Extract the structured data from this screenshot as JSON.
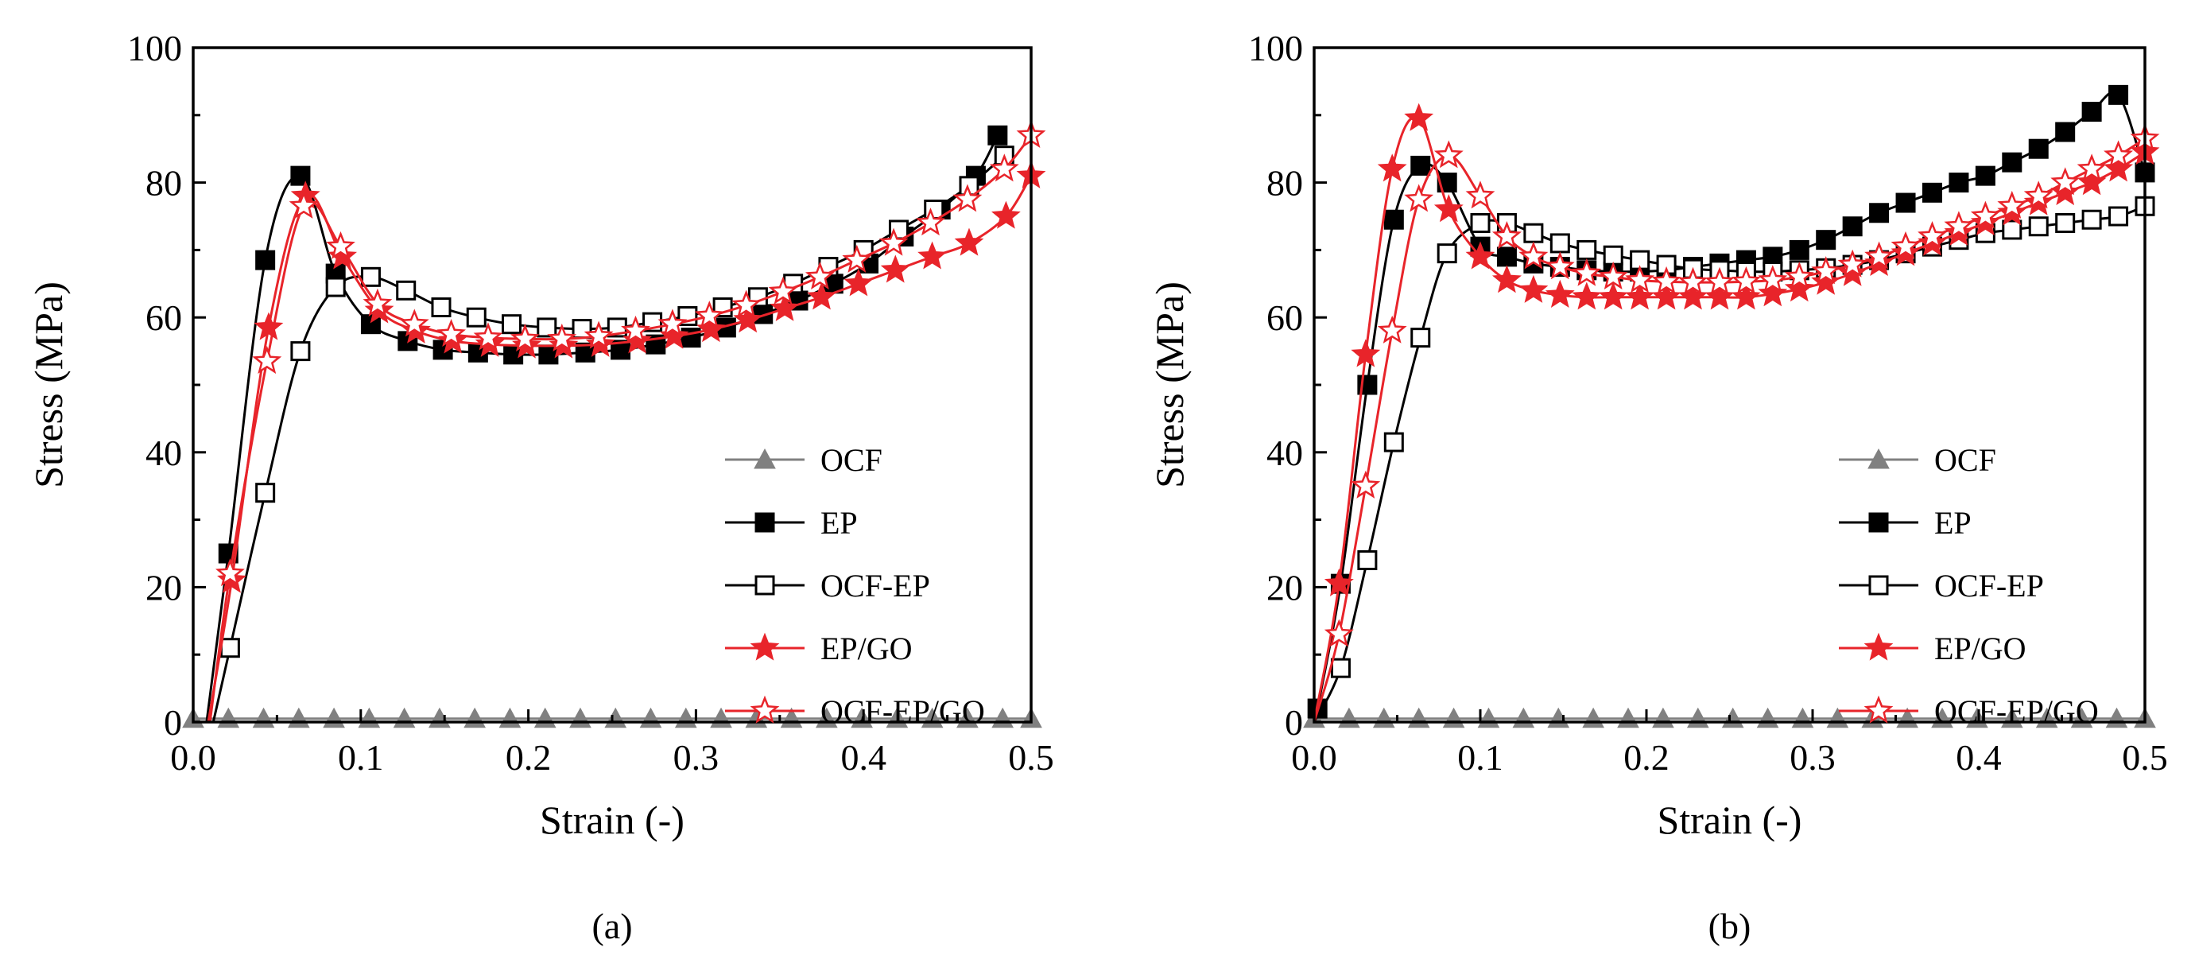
{
  "chart_data": [
    {
      "type": "line",
      "panel_label": "(a)",
      "xlabel": "Strain (-)",
      "ylabel": "Stress (MPa)",
      "xlim": [
        0.0,
        0.5
      ],
      "ylim": [
        0,
        100
      ],
      "xticks": [
        "0.0",
        "0.1",
        "0.2",
        "0.3",
        "0.4",
        "0.5"
      ],
      "yticks": [
        "0",
        "20",
        "40",
        "60",
        "80",
        "100"
      ],
      "grid": false,
      "legend": "bottom-right",
      "series": [
        {
          "name": "OCF",
          "color": "#808080",
          "marker": "triangle-filled",
          "x": [
            0.0,
            0.021,
            0.042,
            0.063,
            0.084,
            0.105,
            0.126,
            0.147,
            0.168,
            0.189,
            0.21,
            0.231,
            0.252,
            0.273,
            0.294,
            0.315,
            0.336,
            0.357,
            0.378,
            0.399,
            0.42,
            0.441,
            0.462,
            0.483,
            0.5
          ],
          "y": [
            0.5,
            0.5,
            0.5,
            0.5,
            0.5,
            0.5,
            0.5,
            0.5,
            0.5,
            0.5,
            0.5,
            0.5,
            0.5,
            0.5,
            0.5,
            0.5,
            0.5,
            0.5,
            0.5,
            0.5,
            0.5,
            0.5,
            0.5,
            0.5,
            0.5
          ]
        },
        {
          "name": "EP",
          "color": "#000000",
          "marker": "square-filled",
          "x": [
            0.008,
            0.021,
            0.043,
            0.064,
            0.085,
            0.106,
            0.128,
            0.149,
            0.17,
            0.191,
            0.212,
            0.234,
            0.255,
            0.276,
            0.297,
            0.318,
            0.34,
            0.361,
            0.382,
            0.403,
            0.424,
            0.446,
            0.467,
            0.48
          ],
          "y": [
            0,
            25,
            68.5,
            81,
            66.5,
            59,
            56.5,
            55.2,
            54.8,
            54.5,
            54.5,
            54.8,
            55.2,
            56,
            57,
            58.5,
            60.5,
            62.5,
            65,
            68,
            72,
            76,
            81,
            87
          ]
        },
        {
          "name": "OCF-EP",
          "color": "#000000",
          "marker": "square-open",
          "x": [
            0.012,
            0.022,
            0.043,
            0.064,
            0.085,
            0.106,
            0.127,
            0.148,
            0.169,
            0.19,
            0.211,
            0.232,
            0.253,
            0.274,
            0.295,
            0.316,
            0.337,
            0.358,
            0.379,
            0.4,
            0.421,
            0.442,
            0.463,
            0.484
          ],
          "y": [
            0,
            11,
            34,
            55,
            64.5,
            66,
            64,
            61.5,
            60,
            59,
            58.5,
            58.3,
            58.5,
            59.3,
            60.2,
            61.5,
            63,
            65,
            67.5,
            70,
            73,
            76,
            79.5,
            84
          ]
        },
        {
          "name": "EP/GO",
          "color": "#e8242a",
          "marker": "star-filled",
          "x": [
            0.009,
            0.023,
            0.045,
            0.067,
            0.089,
            0.111,
            0.133,
            0.155,
            0.177,
            0.199,
            0.221,
            0.243,
            0.265,
            0.287,
            0.309,
            0.331,
            0.353,
            0.375,
            0.397,
            0.419,
            0.441,
            0.463,
            0.485,
            0.5
          ],
          "y": [
            0,
            21,
            58.5,
            78,
            69,
            61,
            58,
            56.5,
            56,
            55.8,
            55.8,
            56,
            56.5,
            57.2,
            58.2,
            59.6,
            61.3,
            63,
            65,
            67,
            69,
            71,
            75,
            81
          ]
        },
        {
          "name": "OCF-EP/GO",
          "color": "#e8242a",
          "marker": "star-open",
          "x": [
            0.01,
            0.022,
            0.044,
            0.066,
            0.088,
            0.11,
            0.132,
            0.154,
            0.176,
            0.198,
            0.22,
            0.242,
            0.264,
            0.286,
            0.308,
            0.33,
            0.352,
            0.374,
            0.396,
            0.418,
            0.44,
            0.462,
            0.484,
            0.5
          ],
          "y": [
            0,
            22,
            53.5,
            76.5,
            70.5,
            62,
            59,
            57.5,
            57,
            56.8,
            56.8,
            57.2,
            58,
            59,
            60.2,
            61.8,
            63.8,
            66,
            68.5,
            71,
            74,
            77.5,
            82,
            87
          ]
        }
      ]
    },
    {
      "type": "line",
      "panel_label": "(b)",
      "xlabel": "Strain (-)",
      "ylabel": "Stress (MPa)",
      "xlim": [
        0.0,
        0.5
      ],
      "ylim": [
        0,
        100
      ],
      "xticks": [
        "0.0",
        "0.1",
        "0.2",
        "0.3",
        "0.4",
        "0.5"
      ],
      "yticks": [
        "0",
        "20",
        "40",
        "60",
        "80",
        "100"
      ],
      "grid": false,
      "legend": "bottom-right",
      "series": [
        {
          "name": "OCF",
          "color": "#808080",
          "marker": "triangle-filled",
          "x": [
            0.0,
            0.021,
            0.042,
            0.063,
            0.084,
            0.105,
            0.126,
            0.147,
            0.168,
            0.189,
            0.21,
            0.231,
            0.252,
            0.273,
            0.294,
            0.315,
            0.336,
            0.357,
            0.378,
            0.399,
            0.42,
            0.441,
            0.462,
            0.483,
            0.5
          ],
          "y": [
            0.5,
            0.5,
            0.5,
            0.5,
            0.5,
            0.5,
            0.5,
            0.5,
            0.5,
            0.5,
            0.5,
            0.5,
            0.5,
            0.5,
            0.5,
            0.5,
            0.5,
            0.5,
            0.5,
            0.5,
            0.5,
            0.5,
            0.5,
            0.5,
            0.5
          ]
        },
        {
          "name": "EP",
          "color": "#000000",
          "marker": "square-filled",
          "x": [
            0.002,
            0.016,
            0.032,
            0.048,
            0.064,
            0.08,
            0.1,
            0.116,
            0.132,
            0.148,
            0.164,
            0.18,
            0.196,
            0.212,
            0.228,
            0.244,
            0.26,
            0.276,
            0.292,
            0.308,
            0.324,
            0.34,
            0.356,
            0.372,
            0.388,
            0.404,
            0.42,
            0.436,
            0.452,
            0.468,
            0.484,
            0.5
          ],
          "y": [
            2,
            20.5,
            50,
            74.5,
            82.5,
            80,
            70.5,
            69,
            68,
            67.5,
            67,
            66.8,
            66.8,
            67,
            67.5,
            68,
            68.5,
            69,
            70,
            71.5,
            73.5,
            75.5,
            77,
            78.5,
            80,
            81,
            83,
            85,
            87.5,
            90.5,
            93,
            81.5
          ]
        },
        {
          "name": "OCF-EP",
          "color": "#000000",
          "marker": "square-open",
          "x": [
            0.0,
            0.016,
            0.032,
            0.048,
            0.064,
            0.08,
            0.1,
            0.116,
            0.132,
            0.148,
            0.164,
            0.18,
            0.196,
            0.212,
            0.228,
            0.244,
            0.26,
            0.276,
            0.292,
            0.308,
            0.324,
            0.34,
            0.356,
            0.372,
            0.388,
            0.404,
            0.42,
            0.436,
            0.452,
            0.468,
            0.484,
            0.5
          ],
          "y": [
            0,
            8,
            24,
            41.5,
            57,
            69.5,
            74,
            74,
            72.5,
            71,
            70,
            69.2,
            68.5,
            67.8,
            67.2,
            67,
            66.8,
            66.8,
            67,
            67.3,
            67.8,
            68.5,
            69.5,
            70.5,
            71.5,
            72.5,
            73,
            73.5,
            74,
            74.5,
            75,
            76.5
          ]
        },
        {
          "name": "EP/GO",
          "color": "#e8242a",
          "marker": "star-filled",
          "x": [
            0.0,
            0.015,
            0.031,
            0.047,
            0.063,
            0.081,
            0.1,
            0.116,
            0.132,
            0.148,
            0.164,
            0.18,
            0.196,
            0.212,
            0.228,
            0.244,
            0.26,
            0.276,
            0.292,
            0.308,
            0.324,
            0.34,
            0.356,
            0.372,
            0.388,
            0.404,
            0.42,
            0.436,
            0.452,
            0.468,
            0.484,
            0.5
          ],
          "y": [
            0,
            20.5,
            54.5,
            82,
            89.5,
            76,
            69,
            65.5,
            64,
            63.3,
            63,
            63,
            63,
            63,
            63,
            63,
            63,
            63.5,
            64.2,
            65.2,
            66.5,
            68,
            69.5,
            71,
            72.5,
            74,
            75.5,
            77,
            78.5,
            80,
            82,
            84.5
          ]
        },
        {
          "name": "OCF-EP/GO",
          "color": "#e8242a",
          "marker": "star-open",
          "x": [
            0.0,
            0.015,
            0.031,
            0.047,
            0.063,
            0.081,
            0.1,
            0.116,
            0.132,
            0.148,
            0.164,
            0.18,
            0.196,
            0.212,
            0.228,
            0.244,
            0.26,
            0.276,
            0.292,
            0.308,
            0.324,
            0.34,
            0.356,
            0.372,
            0.388,
            0.404,
            0.42,
            0.436,
            0.452,
            0.468,
            0.484,
            0.5
          ],
          "y": [
            0,
            13,
            35,
            58,
            77.5,
            84,
            78,
            72,
            69,
            67.5,
            66.5,
            66,
            65.5,
            65.3,
            65.2,
            65.2,
            65.3,
            65.5,
            66,
            66.8,
            67.8,
            69,
            70.5,
            72,
            73.5,
            75,
            76.5,
            78,
            80,
            82,
            84,
            86.5
          ]
        }
      ]
    }
  ]
}
